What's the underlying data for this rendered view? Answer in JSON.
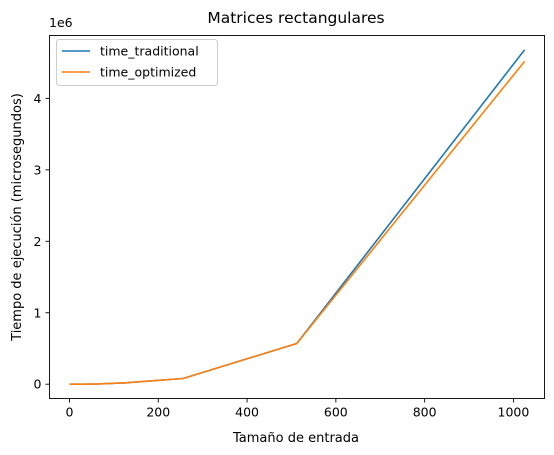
{
  "chart_data": {
    "type": "line",
    "title": "Matrices rectangulares",
    "xlabel": "Tamaño de entrada",
    "ylabel": "Tiempo de ejecución (microsegundos)",
    "y_scale_label": "1e6",
    "y_multiplier": 1000000,
    "xlim": [
      -45,
      1070
    ],
    "ylim": [
      -0.2,
      4.88
    ],
    "x_ticks": [
      0,
      200,
      400,
      600,
      800,
      1000
    ],
    "x_tick_labels": [
      "0",
      "200",
      "400",
      "600",
      "800",
      "1000"
    ],
    "y_ticks": [
      0,
      1,
      2,
      3,
      4
    ],
    "y_tick_labels": [
      "0",
      "1",
      "2",
      "3",
      "4"
    ],
    "grid": false,
    "legend_position": "top-left",
    "x": [
      2,
      4,
      8,
      16,
      32,
      64,
      128,
      256,
      512,
      1024
    ],
    "series": [
      {
        "name": "time_traditional",
        "color": "#1f77b4",
        "values": [
          0.0,
          0.0,
          0.0,
          0.0,
          0.001,
          0.004,
          0.02,
          0.08,
          0.57,
          4.67
        ]
      },
      {
        "name": "time_optimized",
        "color": "#ff7f0e",
        "values": [
          0.0,
          0.0,
          0.0,
          0.0,
          0.001,
          0.004,
          0.02,
          0.08,
          0.57,
          4.51
        ]
      }
    ]
  }
}
